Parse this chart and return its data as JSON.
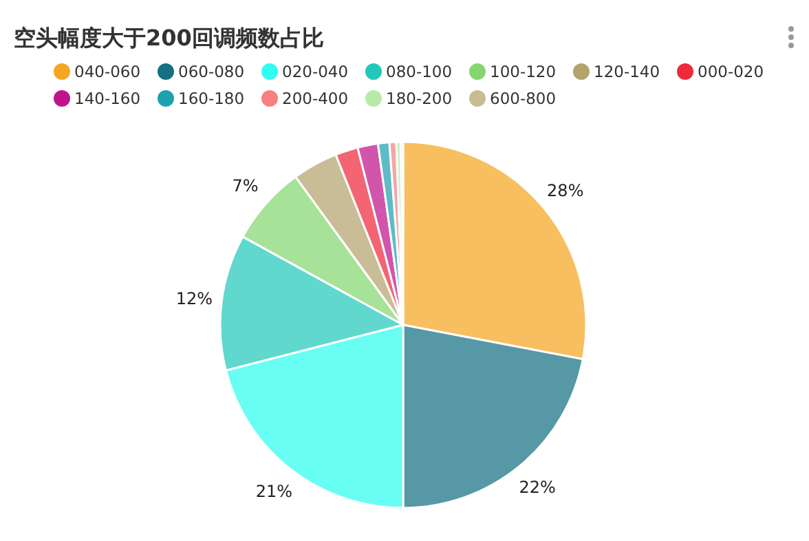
{
  "chart_data": {
    "type": "pie",
    "title": "空头幅度大于200回调频数占比",
    "categories": [
      "040-060",
      "060-080",
      "020-040",
      "080-100",
      "100-120",
      "120-140",
      "000-020",
      "140-160",
      "160-180",
      "200-400",
      "180-200",
      "600-800"
    ],
    "values": [
      28,
      22,
      21,
      12,
      7,
      4,
      2,
      1.8,
      1,
      0.6,
      0.4,
      0.2
    ],
    "colors": [
      "#f5a623",
      "#157082",
      "#2ffdf0",
      "#22c9bb",
      "#84d76f",
      "#b3a46d",
      "#ee2a3c",
      "#c0148c",
      "#1ea2b0",
      "#f87f7f",
      "#b7eaa9",
      "#c8bc92"
    ],
    "value_labels": [
      "28%",
      "22%",
      "21%",
      "12%",
      "7%",
      null,
      null,
      null,
      null,
      null,
      null,
      null
    ],
    "legend": "top"
  }
}
